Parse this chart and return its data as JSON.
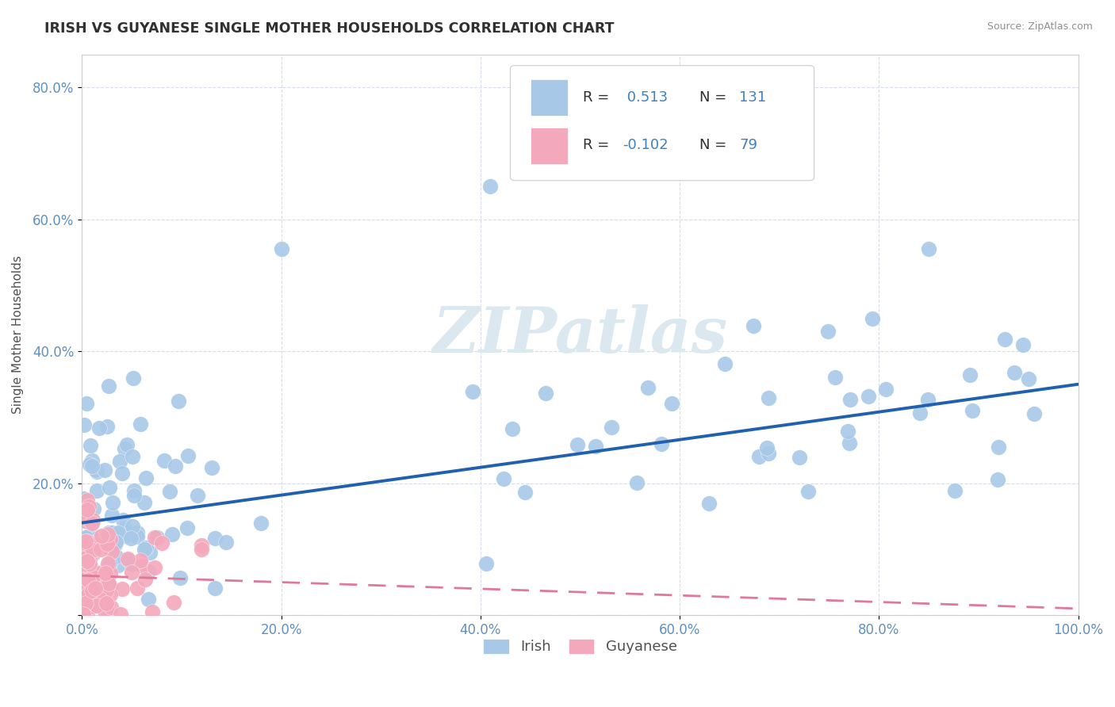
{
  "title": "IRISH VS GUYANESE SINGLE MOTHER HOUSEHOLDS CORRELATION CHART",
  "source": "Source: ZipAtlas.com",
  "ylabel": "Single Mother Households",
  "xlim": [
    0,
    1.0
  ],
  "ylim": [
    0,
    0.85
  ],
  "xtick_vals": [
    0.0,
    0.2,
    0.4,
    0.6,
    0.8,
    1.0
  ],
  "ytick_vals": [
    0.0,
    0.2,
    0.4,
    0.6,
    0.8
  ],
  "xtick_labels": [
    "0.0%",
    "20.0%",
    "40.0%",
    "60.0%",
    "80.0%",
    "100.0%"
  ],
  "ytick_labels": [
    "",
    "20.0%",
    "40.0%",
    "60.0%",
    "80.0%"
  ],
  "irish_color": "#a8c8e8",
  "guyanese_color": "#f4a8bc",
  "irish_line_color": "#2060b0",
  "guyanese_line_color": "#e07898",
  "irish_R": 0.513,
  "irish_N": 131,
  "guyanese_R": -0.102,
  "guyanese_N": 79,
  "irish_line_x0": 0.0,
  "irish_line_y0": 0.14,
  "irish_line_x1": 1.0,
  "irish_line_y1": 0.35,
  "guyanese_line_x0": 0.0,
  "guyanese_line_y0": 0.06,
  "guyanese_line_x1": 1.0,
  "guyanese_line_y1": 0.01,
  "watermark": "ZIPatlas",
  "watermark_color": "#dce8f0",
  "background_color": "#ffffff",
  "grid_color": "#d8dce8",
  "tick_color": "#6090c0",
  "label_color": "#505050",
  "legend_text_black": "#303030",
  "legend_text_blue": "#4080c0"
}
